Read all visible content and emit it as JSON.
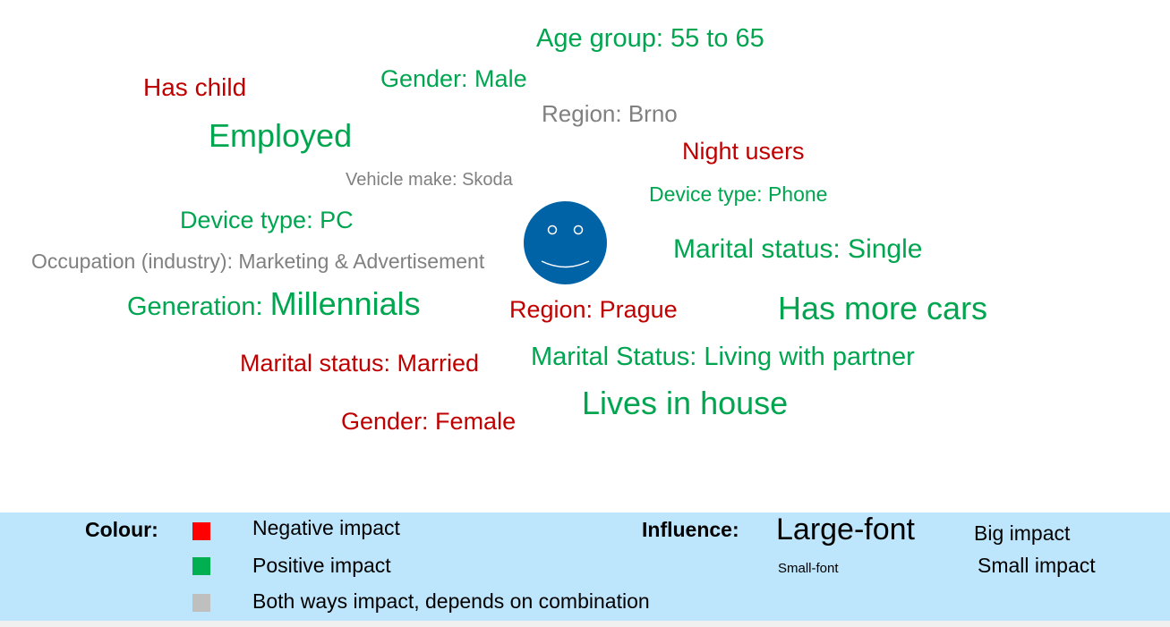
{
  "words": {
    "age_group": "Age group: 55 to 65",
    "has_child": "Has child",
    "gender_male": "Gender: Male",
    "region_brno": "Region: Brno",
    "employed": "Employed",
    "night_users": "Night users",
    "vehicle_make": "Vehicle make: Skoda",
    "device_phone": "Device type: Phone",
    "device_pc": "Device type: PC",
    "marital_single": "Marital status: Single",
    "occupation": "Occupation (industry): Marketing & Advertisement",
    "generation_prefix": "Generation: ",
    "generation_value": "Millennials",
    "region_prague": "Region: Prague",
    "more_cars": "Has more cars",
    "marital_married": "Marital status: Married",
    "marital_partner": "Marital Status: Living with partner",
    "lives_house": "Lives in house",
    "gender_female": "Gender: Female"
  },
  "colors": {
    "negative": "#c00000",
    "positive": "#00a550",
    "both": "#808080",
    "smiley": "#0063a6",
    "legend_background": "#bde5fb",
    "swatch_negative": "#ff0000",
    "swatch_positive": "#00b050",
    "swatch_both": "#bfbfbf"
  },
  "legend": {
    "colour_heading": "Colour:",
    "negative_label": "Negative impact",
    "positive_label": "Positive impact",
    "both_label": "Both ways impact, depends on combination",
    "influence_heading": "Influence:",
    "large_font_sample": "Large-font",
    "small_font_sample": "Small-font",
    "big_impact_label": "Big impact",
    "small_impact_label": "Small impact"
  },
  "icons": {
    "center": "smiley-face-icon"
  }
}
